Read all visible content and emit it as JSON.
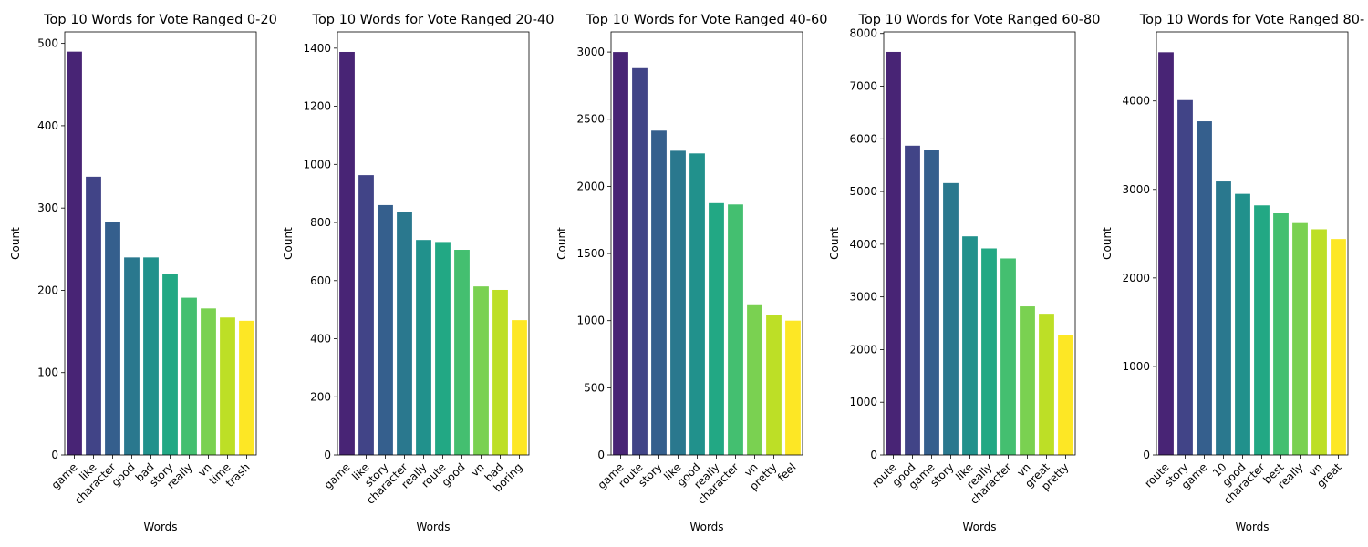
{
  "chart_data": [
    {
      "type": "bar",
      "title": "Top 10 Words for Vote Ranged 0-20",
      "xlabel": "Words",
      "ylabel": "Count",
      "categories": [
        "game",
        "like",
        "character",
        "good",
        "bad",
        "story",
        "really",
        "vn",
        "time",
        "trash"
      ],
      "values": [
        490,
        338,
        283,
        240,
        240,
        220,
        191,
        178,
        167,
        163
      ],
      "ylim": [
        0,
        514
      ],
      "yticks": [
        0,
        100,
        200,
        300,
        400,
        500
      ],
      "grid": false,
      "legend": "none"
    },
    {
      "type": "bar",
      "title": "Top 10 Words for Vote Ranged 20-40",
      "xlabel": "Words",
      "ylabel": "Count",
      "categories": [
        "game",
        "like",
        "story",
        "character",
        "really",
        "route",
        "good",
        "vn",
        "bad",
        "boring"
      ],
      "values": [
        1387,
        963,
        860,
        835,
        740,
        733,
        706,
        580,
        568,
        464
      ],
      "ylim": [
        0,
        1456
      ],
      "yticks": [
        0,
        200,
        400,
        600,
        800,
        1000,
        1200,
        1400
      ],
      "grid": false,
      "legend": "none"
    },
    {
      "type": "bar",
      "title": "Top 10 Words for Vote Ranged 40-60",
      "xlabel": "Words",
      "ylabel": "Count",
      "categories": [
        "game",
        "route",
        "story",
        "like",
        "good",
        "really",
        "character",
        "vn",
        "pretty",
        "feel"
      ],
      "values": [
        3000,
        2880,
        2415,
        2265,
        2245,
        1875,
        1865,
        1115,
        1045,
        1000
      ],
      "ylim": [
        0,
        3150
      ],
      "yticks": [
        0,
        500,
        1000,
        1500,
        2000,
        2500,
        3000
      ],
      "grid": false,
      "legend": "none"
    },
    {
      "type": "bar",
      "title": "Top 10 Words for Vote Ranged 60-80",
      "xlabel": "Words",
      "ylabel": "Count",
      "categories": [
        "route",
        "good",
        "game",
        "story",
        "like",
        "really",
        "character",
        "vn",
        "great",
        "pretty"
      ],
      "values": [
        7650,
        5870,
        5790,
        5160,
        4150,
        3920,
        3730,
        2820,
        2680,
        2280
      ],
      "ylim": [
        0,
        8030
      ],
      "yticks": [
        0,
        1000,
        2000,
        3000,
        4000,
        5000,
        6000,
        7000,
        8000
      ],
      "grid": false,
      "legend": "none"
    },
    {
      "type": "bar",
      "title": "Top 10 Words for Vote Ranged 80-",
      "xlabel": "Words",
      "ylabel": "Count",
      "categories": [
        "route",
        "story",
        "game",
        "10",
        "good",
        "character",
        "best",
        "really",
        "vn",
        "great"
      ],
      "values": [
        4550,
        4010,
        3770,
        3090,
        2950,
        2820,
        2730,
        2620,
        2550,
        2440
      ],
      "ylim": [
        0,
        4780
      ],
      "yticks": [
        0,
        1000,
        2000,
        3000,
        4000
      ],
      "grid": false,
      "legend": "none"
    }
  ],
  "palette": [
    "#482475",
    "#414487",
    "#355f8d",
    "#2a788e",
    "#21918c",
    "#22a884",
    "#44bf70",
    "#7ad151",
    "#bddf26",
    "#fde725"
  ]
}
